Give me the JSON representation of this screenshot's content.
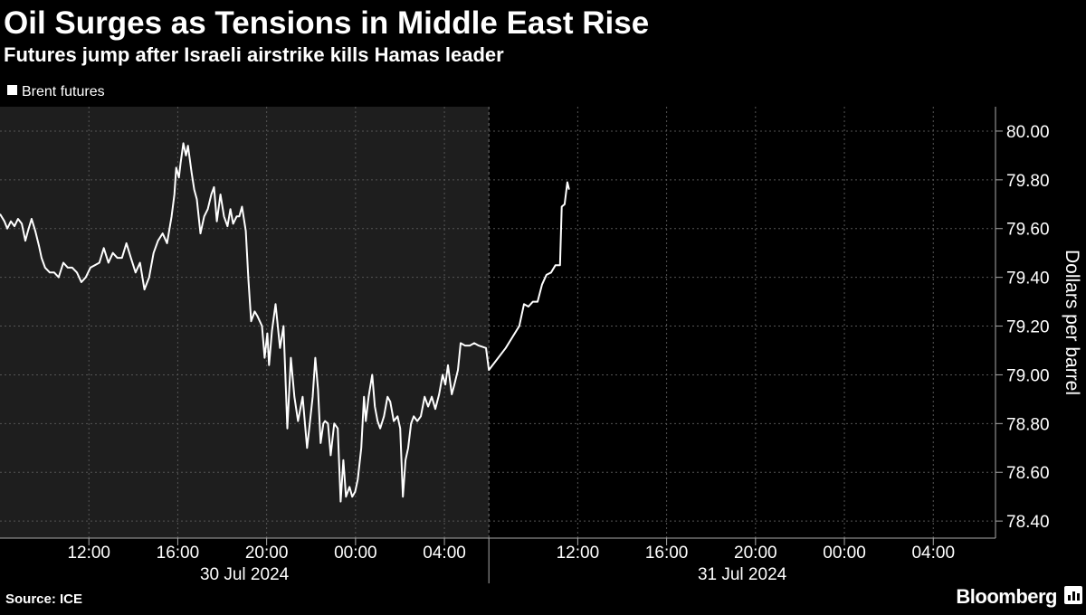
{
  "chart_data": {
    "type": "line",
    "title": "Oil Surges as Tensions in Middle East Rise",
    "subtitle": "Futures jump after Israeli airstrike kills Hamas leader",
    "y_axis_label": "Dollars per barrel",
    "source": "Source: ICE",
    "brand": "Bloomberg",
    "grid": true,
    "legend": "top-left",
    "xlim": [
      8,
      54.8
    ],
    "ylim": [
      78.33,
      80.1
    ],
    "xticks": [
      {
        "value": 12,
        "label": "12:00"
      },
      {
        "value": 16,
        "label": "16:00"
      },
      {
        "value": 20,
        "label": "20:00"
      },
      {
        "value": 24,
        "label": "00:00"
      },
      {
        "value": 28,
        "label": "04:00"
      },
      {
        "value": 36,
        "label": "12:00"
      },
      {
        "value": 40,
        "label": "16:00"
      },
      {
        "value": 44,
        "label": "20:00"
      },
      {
        "value": 48,
        "label": "00:00"
      },
      {
        "value": 52,
        "label": "04:00"
      }
    ],
    "yticks": [
      {
        "value": 78.4,
        "label": "78.40"
      },
      {
        "value": 78.6,
        "label": "78.60"
      },
      {
        "value": 78.8,
        "label": "78.80"
      },
      {
        "value": 79,
        "label": "79.00"
      },
      {
        "value": 79.2,
        "label": "79.20"
      },
      {
        "value": 79.4,
        "label": "79.40"
      },
      {
        "value": 79.6,
        "label": "79.60"
      },
      {
        "value": 79.8,
        "label": "79.80"
      },
      {
        "value": 80,
        "label": "80.00"
      }
    ],
    "sessions": [
      {
        "label": "30 Jul 2024",
        "start": 8,
        "end": 30,
        "shade": true
      },
      {
        "label": "31 Jul 2024",
        "start": 32,
        "end": 54.8,
        "shade": false
      }
    ],
    "x": [
      8.0,
      8.2,
      8.33,
      8.49,
      8.65,
      8.81,
      8.98,
      9.14,
      9.26,
      9.42,
      9.59,
      9.75,
      9.87,
      10.03,
      10.24,
      10.44,
      10.64,
      10.85,
      11.05,
      11.25,
      11.46,
      11.66,
      11.86,
      12.07,
      12.27,
      12.47,
      12.67,
      12.88,
      13.08,
      13.28,
      13.49,
      13.69,
      13.89,
      14.1,
      14.3,
      14.5,
      14.71,
      14.91,
      15.11,
      15.32,
      15.52,
      15.72,
      15.85,
      15.93,
      16.05,
      16.13,
      16.25,
      16.37,
      16.46,
      16.62,
      16.74,
      16.86,
      17.02,
      17.19,
      17.35,
      17.51,
      17.63,
      17.76,
      17.92,
      18.08,
      18.24,
      18.37,
      18.49,
      18.65,
      18.77,
      18.89,
      19.06,
      19.18,
      19.3,
      19.46,
      19.59,
      19.79,
      19.91,
      20.03,
      20.11,
      20.24,
      20.4,
      20.6,
      20.76,
      20.93,
      21.09,
      21.25,
      21.41,
      21.62,
      21.82,
      21.94,
      22.07,
      22.19,
      22.31,
      22.43,
      22.55,
      22.63,
      22.76,
      22.88,
      23.04,
      23.2,
      23.33,
      23.45,
      23.57,
      23.73,
      23.85,
      23.98,
      24.1,
      24.26,
      24.38,
      24.46,
      24.59,
      24.75,
      24.87,
      24.99,
      25.11,
      25.28,
      25.44,
      25.56,
      25.72,
      25.89,
      26.01,
      26.13,
      26.25,
      26.37,
      26.5,
      26.62,
      26.78,
      26.94,
      27.11,
      27.27,
      27.43,
      27.59,
      27.76,
      27.92,
      28.04,
      28.16,
      28.33,
      28.45,
      28.61,
      28.73,
      28.93,
      29.14,
      29.34,
      29.54,
      29.87,
      32.0,
      32.76,
      33.37,
      33.58,
      33.78,
      33.98,
      34.19,
      34.39,
      34.59,
      34.8,
      35.0,
      35.2,
      35.28,
      35.41,
      35.53,
      35.61
    ],
    "series": [
      {
        "name": "Brent futures",
        "color": "#ffffff",
        "values": [
          79.66,
          79.63,
          79.6,
          79.63,
          79.61,
          79.64,
          79.62,
          79.55,
          79.59,
          79.64,
          79.59,
          79.53,
          79.48,
          79.44,
          79.42,
          79.42,
          79.4,
          79.46,
          79.44,
          79.44,
          79.42,
          79.38,
          79.4,
          79.44,
          79.45,
          79.46,
          79.52,
          79.46,
          79.5,
          79.48,
          79.48,
          79.54,
          79.48,
          79.42,
          79.46,
          79.35,
          79.4,
          79.5,
          79.55,
          79.58,
          79.54,
          79.65,
          79.74,
          79.85,
          79.81,
          79.87,
          79.95,
          79.9,
          79.94,
          79.83,
          79.76,
          79.72,
          79.58,
          79.65,
          79.68,
          79.74,
          79.77,
          79.63,
          79.74,
          79.65,
          79.61,
          79.68,
          79.62,
          79.65,
          79.65,
          79.69,
          79.59,
          79.39,
          79.22,
          79.26,
          79.24,
          79.2,
          79.07,
          79.17,
          79.04,
          79.18,
          79.29,
          79.11,
          79.2,
          78.78,
          79.07,
          78.91,
          78.81,
          78.91,
          78.7,
          78.8,
          78.91,
          79.07,
          78.94,
          78.72,
          78.8,
          78.81,
          78.8,
          78.67,
          78.8,
          78.78,
          78.48,
          78.65,
          78.5,
          78.54,
          78.5,
          78.52,
          78.57,
          78.7,
          78.91,
          78.81,
          78.91,
          79.0,
          78.87,
          78.81,
          78.78,
          78.83,
          78.91,
          78.89,
          78.81,
          78.83,
          78.78,
          78.5,
          78.65,
          78.7,
          78.8,
          78.83,
          78.81,
          78.83,
          78.91,
          78.87,
          78.91,
          78.86,
          78.92,
          79.0,
          78.96,
          79.04,
          78.92,
          78.96,
          79.02,
          79.13,
          79.12,
          79.12,
          79.13,
          79.12,
          79.11,
          79.02,
          79.11,
          79.2,
          79.29,
          79.28,
          79.3,
          79.3,
          79.37,
          79.41,
          79.42,
          79.45,
          79.45,
          79.69,
          79.7,
          79.79,
          79.76
        ]
      }
    ]
  }
}
